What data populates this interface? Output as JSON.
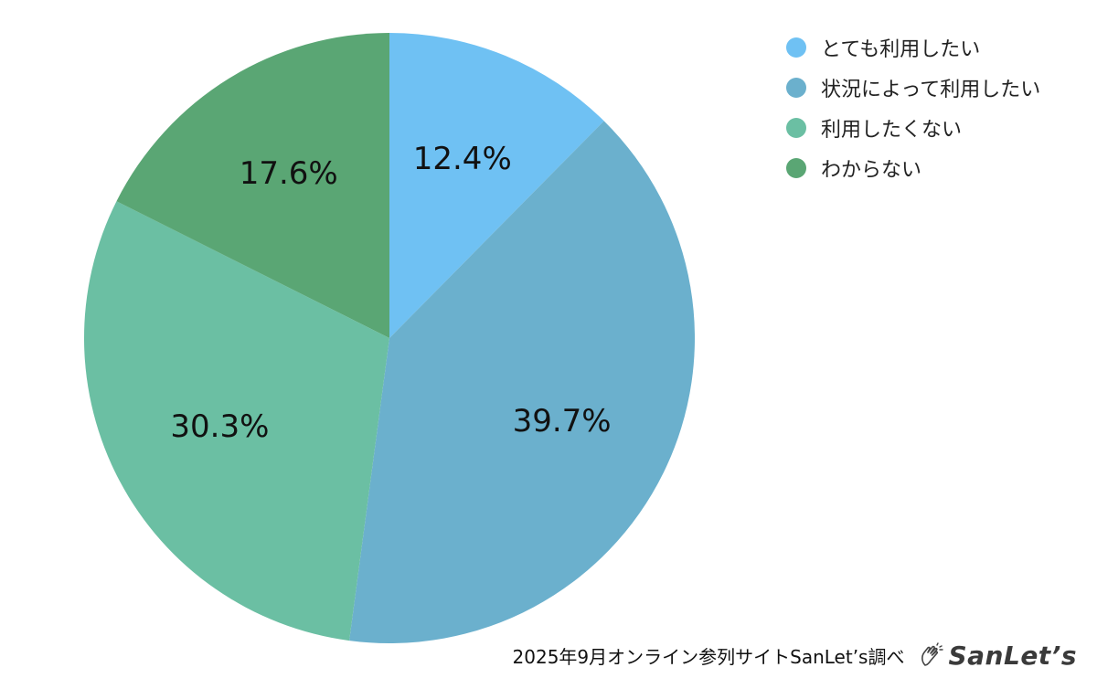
{
  "chart_data": {
    "type": "pie",
    "title": "",
    "categories": [
      "とても利用したい",
      "状況によって利用したい",
      "利用したくない",
      "わからない"
    ],
    "values": [
      12.4,
      39.7,
      30.3,
      17.6
    ],
    "labels": [
      "12.4%",
      "39.7%",
      "30.3%",
      "17.6%"
    ],
    "colors": [
      "#6fc1f3",
      "#6bb0cd",
      "#6bbfa3",
      "#5aa674"
    ],
    "start_angle": "12 o'clock",
    "direction": "clockwise",
    "legend_position": "top-right"
  },
  "footer": {
    "source": "2025年9月オンライン参列サイトSanLet’s調べ",
    "brand_logo": {
      "icon": "clapping-hands-icon",
      "text": "SanLet’s"
    }
  }
}
